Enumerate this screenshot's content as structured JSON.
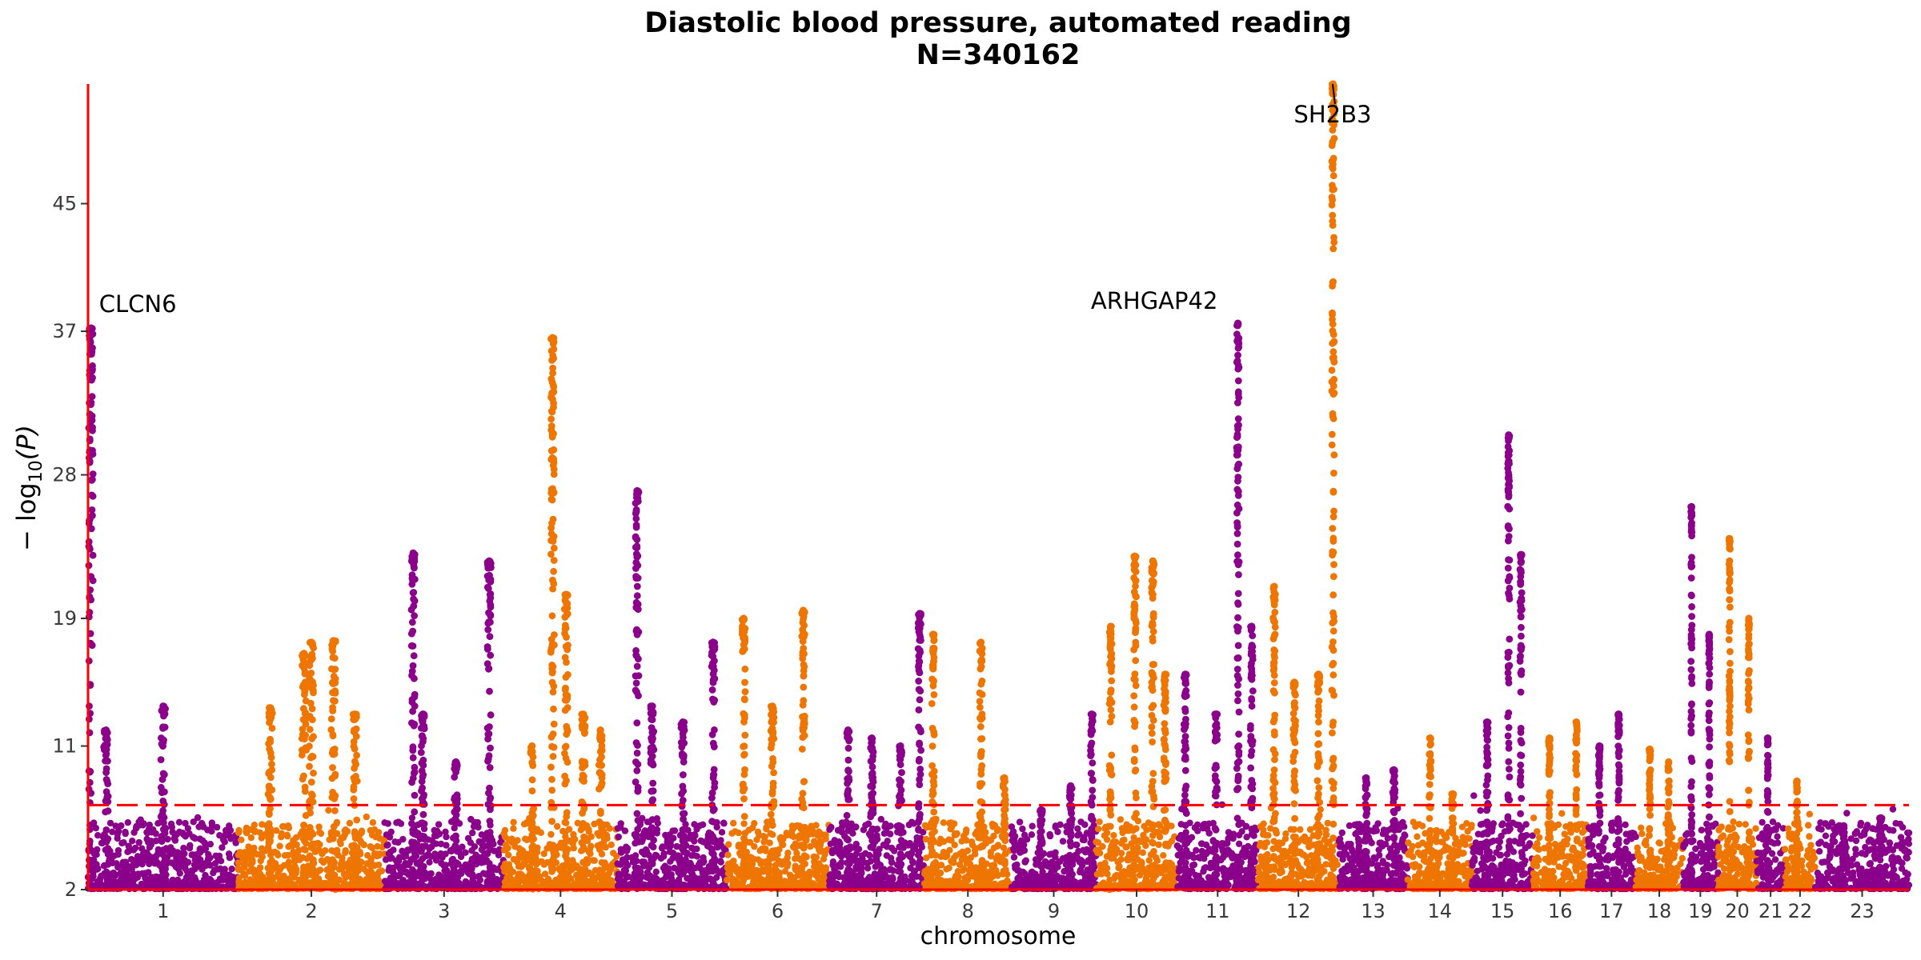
{
  "chart_data": {
    "type": "scatter",
    "title": "Diastolic blood pressure, automated reading",
    "subtitle": "N=340162",
    "xlabel": "chromosome",
    "ylabel_main": "− log",
    "ylabel_sub": "10",
    "ylabel_tail": "(P)",
    "ylim": [
      2,
      52.5
    ],
    "yticks": [
      2,
      11,
      19,
      28,
      37,
      45
    ],
    "threshold": 7.3,
    "grid": false,
    "colors": {
      "odd": "#8B008B",
      "even": "#EE7600",
      "axis": "#FF0000",
      "threshold": "#FF0000",
      "ticktext": "#3a3a3a"
    },
    "chromosomes": [
      {
        "label": "1",
        "span": [
          0,
          250
        ],
        "peaks": [
          {
            "x": 0.02,
            "y": 37.2
          },
          {
            "x": 0.12,
            "y": 12
          },
          {
            "x": 0.5,
            "y": 13.5
          }
        ]
      },
      {
        "label": "2",
        "span": [
          250,
          494
        ],
        "peaks": [
          {
            "x": 0.22,
            "y": 13.4
          },
          {
            "x": 0.45,
            "y": 16.8
          },
          {
            "x": 0.5,
            "y": 17.5
          },
          {
            "x": 0.65,
            "y": 17.6
          },
          {
            "x": 0.8,
            "y": 13
          }
        ]
      },
      {
        "label": "3",
        "span": [
          494,
          692
        ],
        "peaks": [
          {
            "x": 0.24,
            "y": 23.1
          },
          {
            "x": 0.32,
            "y": 13
          },
          {
            "x": 0.6,
            "y": 10
          },
          {
            "x": 0.88,
            "y": 22.6
          }
        ]
      },
      {
        "label": "4",
        "span": [
          692,
          882
        ],
        "peaks": [
          {
            "x": 0.25,
            "y": 11
          },
          {
            "x": 0.43,
            "y": 36.6
          },
          {
            "x": 0.55,
            "y": 20.5
          },
          {
            "x": 0.7,
            "y": 13
          },
          {
            "x": 0.85,
            "y": 12
          }
        ]
      },
      {
        "label": "5",
        "span": [
          882,
          1063
        ],
        "peaks": [
          {
            "x": 0.18,
            "y": 27
          },
          {
            "x": 0.32,
            "y": 13.5
          },
          {
            "x": 0.6,
            "y": 12.5
          },
          {
            "x": 0.88,
            "y": 17.5
          }
        ]
      },
      {
        "label": "6",
        "span": [
          1063,
          1234
        ],
        "peaks": [
          {
            "x": 0.17,
            "y": 19
          },
          {
            "x": 0.45,
            "y": 13.5
          },
          {
            "x": 0.75,
            "y": 19.5
          }
        ]
      },
      {
        "label": "7",
        "span": [
          1234,
          1393
        ],
        "peaks": [
          {
            "x": 0.2,
            "y": 12
          },
          {
            "x": 0.45,
            "y": 11.5
          },
          {
            "x": 0.75,
            "y": 11
          },
          {
            "x": 0.95,
            "y": 19.3
          }
        ]
      },
      {
        "label": "8",
        "span": [
          1393,
          1538
        ],
        "peaks": [
          {
            "x": 0.1,
            "y": 18
          },
          {
            "x": 0.65,
            "y": 17.5
          },
          {
            "x": 0.92,
            "y": 9
          }
        ]
      },
      {
        "label": "9",
        "span": [
          1538,
          1679
        ],
        "peaks": [
          {
            "x": 0.35,
            "y": 7
          },
          {
            "x": 0.7,
            "y": 8.5
          },
          {
            "x": 0.95,
            "y": 13
          }
        ]
      },
      {
        "label": "10",
        "span": [
          1679,
          1814
        ],
        "peaks": [
          {
            "x": 0.18,
            "y": 18.5
          },
          {
            "x": 0.48,
            "y": 22.9
          },
          {
            "x": 0.7,
            "y": 22.6
          },
          {
            "x": 0.85,
            "y": 15.5
          }
        ]
      },
      {
        "label": "11",
        "span": [
          1814,
          1949
        ],
        "peaks": [
          {
            "x": 0.1,
            "y": 15.5
          },
          {
            "x": 0.48,
            "y": 13
          },
          {
            "x": 0.75,
            "y": 37.5
          },
          {
            "x": 0.92,
            "y": 18.5
          }
        ]
      },
      {
        "label": "12",
        "span": [
          1949,
          2083
        ],
        "peaks": [
          {
            "x": 0.2,
            "y": 21
          },
          {
            "x": 0.45,
            "y": 15
          },
          {
            "x": 0.75,
            "y": 15.5
          },
          {
            "x": 0.93,
            "y": 52.5
          }
        ]
      },
      {
        "label": "13",
        "span": [
          2083,
          2198
        ],
        "peaks": [
          {
            "x": 0.4,
            "y": 9
          },
          {
            "x": 0.8,
            "y": 9.5
          }
        ]
      },
      {
        "label": "14",
        "span": [
          2198,
          2305
        ],
        "peaks": [
          {
            "x": 0.35,
            "y": 11.5
          },
          {
            "x": 0.7,
            "y": 8
          }
        ]
      },
      {
        "label": "15",
        "span": [
          2305,
          2407
        ],
        "peaks": [
          {
            "x": 0.25,
            "y": 12.5
          },
          {
            "x": 0.6,
            "y": 30.5
          },
          {
            "x": 0.8,
            "y": 23
          }
        ]
      },
      {
        "label": "16",
        "span": [
          2407,
          2497
        ],
        "peaks": [
          {
            "x": 0.3,
            "y": 11.5
          },
          {
            "x": 0.8,
            "y": 12.5
          }
        ]
      },
      {
        "label": "17",
        "span": [
          2497,
          2578
        ],
        "peaks": [
          {
            "x": 0.25,
            "y": 11
          },
          {
            "x": 0.65,
            "y": 13
          }
        ]
      },
      {
        "label": "18",
        "span": [
          2578,
          2656
        ],
        "peaks": [
          {
            "x": 0.3,
            "y": 10.8
          },
          {
            "x": 0.7,
            "y": 10
          }
        ]
      },
      {
        "label": "19",
        "span": [
          2656,
          2715
        ],
        "peaks": [
          {
            "x": 0.25,
            "y": 26
          },
          {
            "x": 0.75,
            "y": 18
          }
        ]
      },
      {
        "label": "20",
        "span": [
          2715,
          2779
        ],
        "peaks": [
          {
            "x": 0.3,
            "y": 24
          },
          {
            "x": 0.8,
            "y": 19
          }
        ]
      },
      {
        "label": "21",
        "span": [
          2779,
          2826
        ],
        "peaks": [
          {
            "x": 0.4,
            "y": 11.5
          }
        ]
      },
      {
        "label": "22",
        "span": [
          2826,
          2877
        ],
        "peaks": [
          {
            "x": 0.4,
            "y": 8.8
          }
        ]
      },
      {
        "label": "23",
        "span": [
          2877,
          3033
        ],
        "peaks": [
          {
            "x": 0.3,
            "y": 6
          },
          {
            "x": 0.7,
            "y": 6.5
          }
        ]
      }
    ],
    "annotations": [
      {
        "label": "CLCN6",
        "x": 5,
        "y": 37.2,
        "anchor": "start",
        "dx": 10,
        "dy": -20
      },
      {
        "label": "ARHGAP42",
        "x": 1915,
        "y": 37.5,
        "anchor": "end",
        "dx": -25,
        "dy": -18
      },
      {
        "label": "SH2B3",
        "x": 2073,
        "y": 52.5,
        "anchor": "middle",
        "dx": 0,
        "dy": 48,
        "leader": true
      }
    ]
  }
}
